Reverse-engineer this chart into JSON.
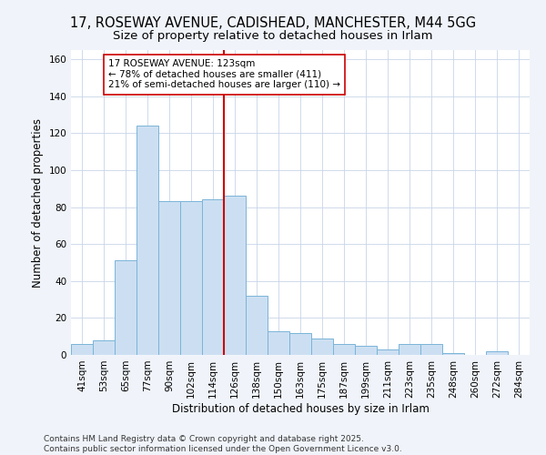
{
  "title_line1": "17, ROSEWAY AVENUE, CADISHEAD, MANCHESTER, M44 5GG",
  "title_line2": "Size of property relative to detached houses in Irlam",
  "xlabel": "Distribution of detached houses by size in Irlam",
  "ylabel": "Number of detached properties",
  "categories": [
    "41sqm",
    "53sqm",
    "65sqm",
    "77sqm",
    "90sqm",
    "102sqm",
    "114sqm",
    "126sqm",
    "138sqm",
    "150sqm",
    "163sqm",
    "175sqm",
    "187sqm",
    "199sqm",
    "211sqm",
    "223sqm",
    "235sqm",
    "248sqm",
    "260sqm",
    "272sqm",
    "284sqm"
  ],
  "values": [
    6,
    8,
    51,
    124,
    83,
    83,
    84,
    86,
    32,
    13,
    12,
    9,
    6,
    5,
    3,
    6,
    6,
    1,
    0,
    2,
    0
  ],
  "bar_color": "#ccdff2",
  "bar_edge_color": "#7ab4d8",
  "vline_index": 7,
  "vline_color": "#cc0000",
  "annotation_text": "17 ROSEWAY AVENUE: 123sqm\n← 78% of detached houses are smaller (411)\n21% of semi-detached houses are larger (110) →",
  "annotation_box_facecolor": "#ffffff",
  "annotation_box_edgecolor": "#cc0000",
  "ylim": [
    0,
    165
  ],
  "yticks": [
    0,
    20,
    40,
    60,
    80,
    100,
    120,
    140,
    160
  ],
  "footer_text": "Contains HM Land Registry data © Crown copyright and database right 2025.\nContains public sector information licensed under the Open Government Licence v3.0.",
  "background_color": "#f0f4fa",
  "plot_bg_color": "#ffffff",
  "grid_color": "#c8d4e8",
  "title_fontsize": 10.5,
  "subtitle_fontsize": 9.5,
  "axis_label_fontsize": 8.5,
  "tick_fontsize": 7.5,
  "annotation_fontsize": 7.5,
  "footer_fontsize": 6.5
}
